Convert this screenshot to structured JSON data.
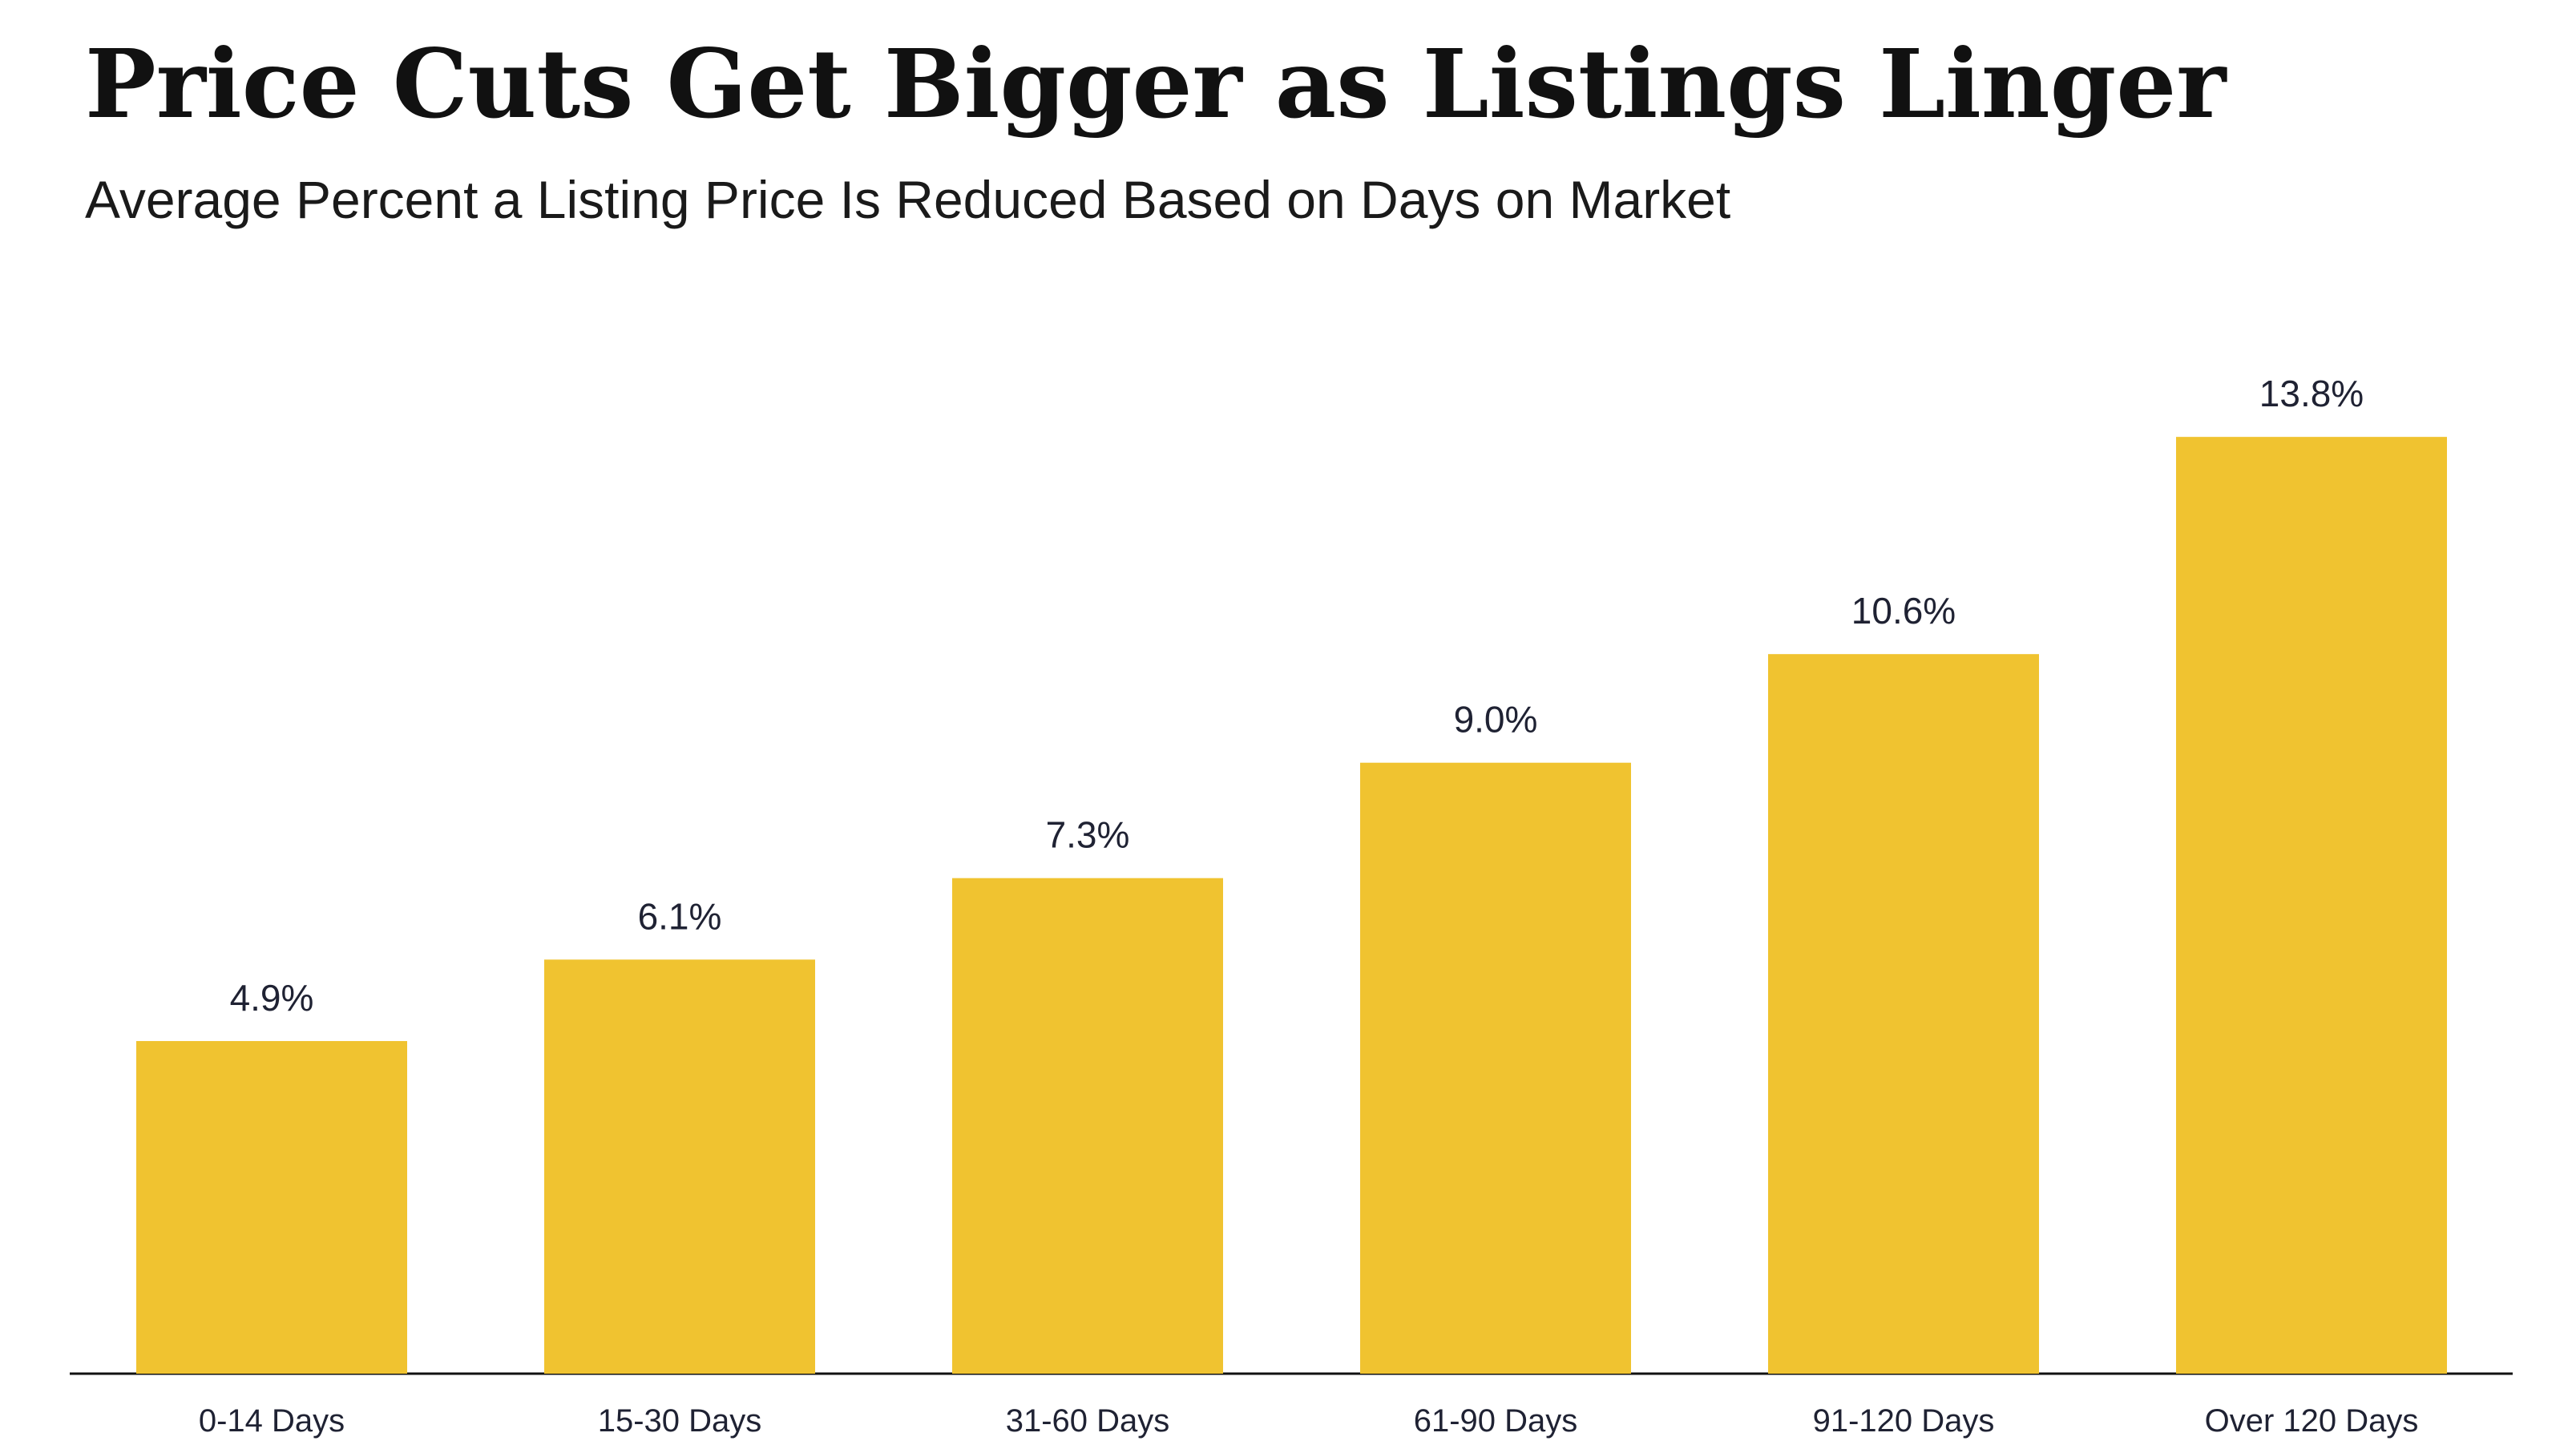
{
  "chart_data": {
    "type": "bar",
    "title": "Price Cuts Get Bigger as Listings Linger",
    "subtitle": "Average Percent a Listing Price Is Reduced Based on Days on Market",
    "categories": [
      "0-14 Days",
      "15-30 Days",
      "31-60 Days",
      "61-90 Days",
      "91-120 Days",
      "Over 120 Days"
    ],
    "values": [
      4.9,
      6.1,
      7.3,
      9.0,
      10.6,
      13.8
    ],
    "value_labels": [
      "4.9%",
      "6.1%",
      "7.3%",
      "9.0%",
      "10.6%",
      "13.8%"
    ],
    "color": "#f0c330"
  }
}
